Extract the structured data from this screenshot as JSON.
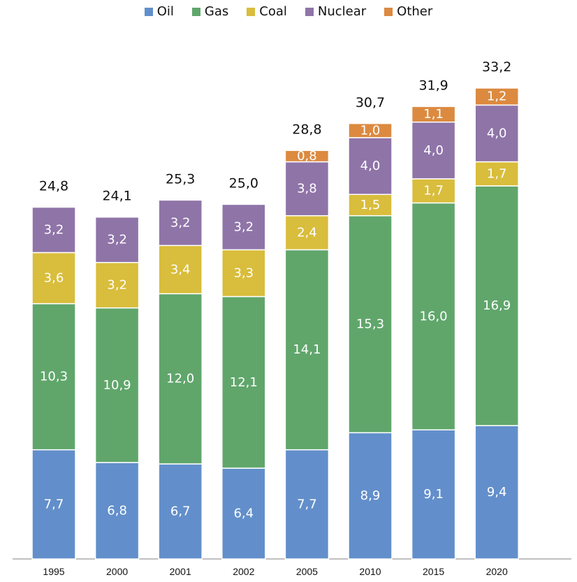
{
  "legend": [
    {
      "name": "Oil",
      "color": "#628FCB"
    },
    {
      "name": "Gas",
      "color": "#60A66B"
    },
    {
      "name": "Coal",
      "color": "#D9BD3C"
    },
    {
      "name": "Nuclear",
      "color": "#8F74A8"
    },
    {
      "name": "Other",
      "color": "#DC8A40"
    }
  ],
  "chart_data": {
    "type": "bar",
    "stacked": true,
    "categories": [
      "1995",
      "2000",
      "2001",
      "2002",
      "2005",
      "2010",
      "2015",
      "2020"
    ],
    "series": [
      {
        "name": "Oil",
        "color": "#628FCB",
        "values": [
          7.7,
          6.8,
          6.7,
          6.4,
          7.7,
          8.9,
          9.1,
          9.4
        ],
        "labels": [
          "7,7",
          "6,8",
          "6,7",
          "6,4",
          "7,7",
          "8,9",
          "9,1",
          "9,4"
        ]
      },
      {
        "name": "Gas",
        "color": "#60A66B",
        "values": [
          10.3,
          10.9,
          12.0,
          12.1,
          14.1,
          15.3,
          16.0,
          16.9
        ],
        "labels": [
          "10,3",
          "10,9",
          "12,0",
          "12,1",
          "14,1",
          "15,3",
          "16,0",
          "16,9"
        ]
      },
      {
        "name": "Coal",
        "color": "#D9BD3C",
        "values": [
          3.6,
          3.2,
          3.4,
          3.3,
          2.4,
          1.5,
          1.7,
          1.7
        ],
        "labels": [
          "3,6",
          "3,2",
          "3,4",
          "3,3",
          "2,4",
          "1,5",
          "1,7",
          "1,7"
        ]
      },
      {
        "name": "Nuclear",
        "color": "#8F74A8",
        "values": [
          3.2,
          3.2,
          3.2,
          3.2,
          3.8,
          4.0,
          4.0,
          4.0
        ],
        "labels": [
          "3,2",
          "3,2",
          "3,2",
          "3,2",
          "3,8",
          "4,0",
          "4,0",
          "4,0"
        ]
      },
      {
        "name": "Other",
        "color": "#DC8A40",
        "values": [
          0,
          0,
          0,
          0,
          0.8,
          1.0,
          1.1,
          1.2
        ],
        "labels": [
          "",
          "",
          "",
          "",
          "0,8",
          "1,0",
          "1,1",
          "1,2"
        ]
      }
    ],
    "totals": [
      24.8,
      24.1,
      25.3,
      25.0,
      28.8,
      30.7,
      31.9,
      33.2
    ],
    "total_labels": [
      "24,8",
      "24,1",
      "25,3",
      "25,0",
      "28,8",
      "30,7",
      "31,9",
      "33,2"
    ],
    "title": "",
    "xlabel": "",
    "ylabel": "",
    "ylim": [
      0,
      33.2
    ],
    "grid": false,
    "legend_position": "top"
  }
}
